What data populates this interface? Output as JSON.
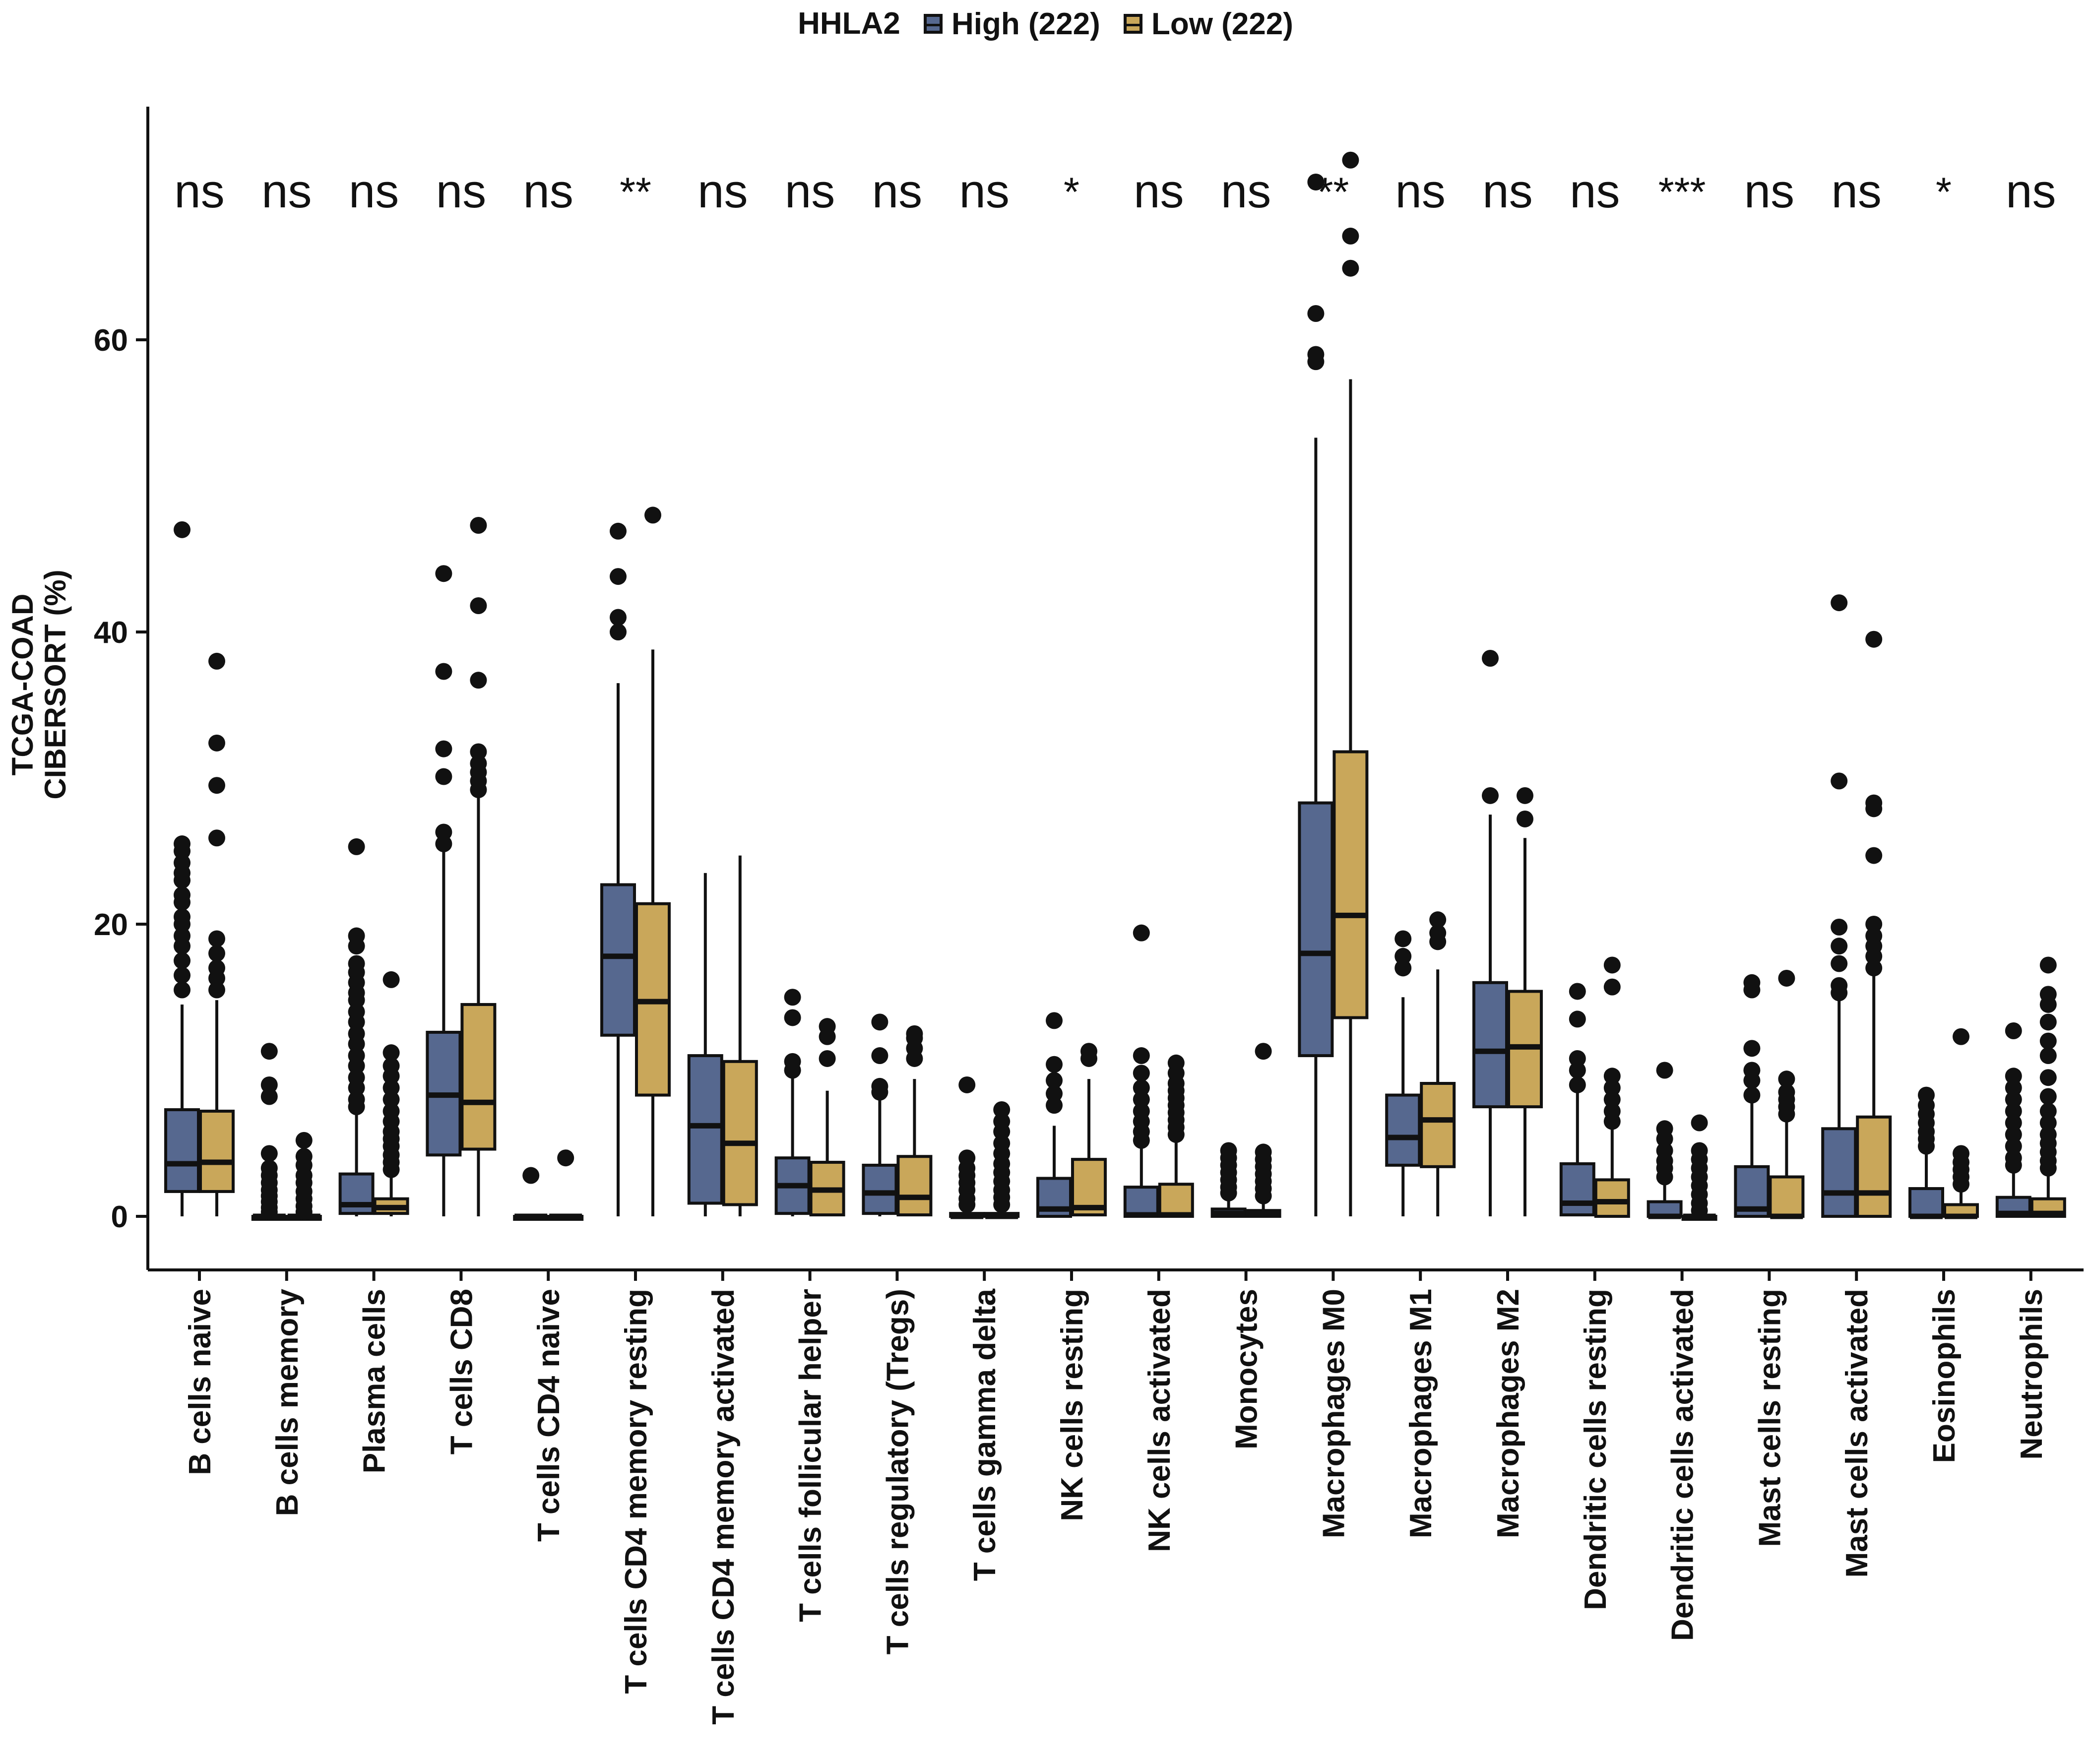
{
  "chart_data": {
    "type": "boxplot",
    "legend": {
      "title": "HHLA2",
      "entries": [
        {
          "label": "High (222)",
          "color": "#56688f"
        },
        {
          "label": "Low (222)",
          "color": "#c9a75a"
        }
      ]
    },
    "ylabel_lines": [
      "TCGA-COAD",
      "CIBERSORT (%)"
    ],
    "ylim": [
      -1,
      76
    ],
    "yticks": [
      0,
      20,
      40,
      60
    ],
    "categories": [
      "B cells naive",
      "B cells memory",
      "Plasma cells",
      "T cells CD8",
      "T cells CD4 naive",
      "T cells CD4 memory resting",
      "T cells CD4 memory activated",
      "T cells follicular helper",
      "T cells regulatory (Tregs)",
      "T cells gamma delta",
      "NK cells resting",
      "NK cells activated",
      "Monocytes",
      "Macrophages M0",
      "Macrophages M1",
      "Macrophages M2",
      "Dendritic cells resting",
      "Dendritic cells activated",
      "Mast cells resting",
      "Mast cells activated",
      "Eosinophils",
      "Neutrophils"
    ],
    "significance": [
      "ns",
      "ns",
      "ns",
      "ns",
      "ns",
      "**",
      "ns",
      "ns",
      "ns",
      "ns",
      "*",
      "ns",
      "ns",
      "**",
      "ns",
      "ns",
      "ns",
      "***",
      "ns",
      "ns",
      "*",
      "ns"
    ],
    "series": [
      {
        "name": "High (222)",
        "boxes": [
          {
            "q1": 1.7,
            "median": 3.6,
            "q3": 7.3,
            "lower": 0,
            "upper": 14.5,
            "outliers": [
              15.5,
              16.5,
              17.5,
              18.5,
              19.2,
              20,
              20.5,
              21.5,
              22,
              23,
              23.5,
              24.2,
              25,
              25.5,
              47
            ]
          },
          {
            "q1": 0,
            "median": 0,
            "q3": 0,
            "lower": 0,
            "upper": 0,
            "outliers": [
              0.3,
              0.6,
              1,
              1.4,
              1.8,
              2.3,
              2.8,
              3.3,
              4.3,
              8.2,
              9,
              11.3
            ]
          },
          {
            "q1": 0.2,
            "median": 0.8,
            "q3": 2.9,
            "lower": 0,
            "upper": 7,
            "outliers": [
              7.5,
              8,
              8.8,
              9.5,
              10.3,
              11,
              11.8,
              12.5,
              13.3,
              14,
              14.8,
              15.3,
              16,
              16.7,
              17.3,
              18.5,
              19.2,
              25.3
            ]
          },
          {
            "q1": 4.2,
            "median": 8.3,
            "q3": 12.6,
            "lower": 0,
            "upper": 25,
            "outliers": [
              25.5,
              26.3,
              30.1,
              32,
              37.3,
              44
            ]
          },
          {
            "q1": 0,
            "median": 0,
            "q3": 0,
            "lower": 0,
            "upper": 0,
            "outliers": [
              2.8
            ]
          },
          {
            "q1": 12.4,
            "median": 17.8,
            "q3": 22.7,
            "lower": 0,
            "upper": 36.5,
            "outliers": [
              40,
              41,
              43.8,
              46.9
            ]
          },
          {
            "q1": 0.9,
            "median": 6.2,
            "q3": 11,
            "lower": 0,
            "upper": 23.5,
            "outliers": []
          },
          {
            "q1": 0.2,
            "median": 2.1,
            "q3": 4,
            "lower": 0,
            "upper": 9.5,
            "outliers": [
              10,
              10.6,
              13.6,
              15
            ]
          },
          {
            "q1": 0.2,
            "median": 1.6,
            "q3": 3.5,
            "lower": 0,
            "upper": 8,
            "outliers": [
              8.5,
              8.9,
              11,
              13.3
            ]
          },
          {
            "q1": 0,
            "median": 0,
            "q3": 0.2,
            "lower": 0,
            "upper": 0.5,
            "outliers": [
              0.8,
              1.2,
              1.8,
              2.3,
              2.8,
              3.3,
              4,
              9
            ]
          },
          {
            "q1": 0,
            "median": 0.5,
            "q3": 2.6,
            "lower": 0,
            "upper": 6.2,
            "outliers": [
              7.6,
              8.4,
              9.3,
              10.4,
              13.4
            ]
          },
          {
            "q1": 0,
            "median": 0.1,
            "q3": 2,
            "lower": 0,
            "upper": 4.8,
            "outliers": [
              5.2,
              5.8,
              6.5,
              7.2,
              8,
              8.8,
              9.8,
              11,
              19.4
            ]
          },
          {
            "q1": 0,
            "median": 0.2,
            "q3": 0.5,
            "lower": 0,
            "upper": 1.2,
            "outliers": [
              1.6,
              2,
              2.5,
              3,
              3.5,
              4,
              4.5
            ]
          },
          {
            "q1": 11,
            "median": 18,
            "q3": 28.3,
            "lower": 0,
            "upper": 53.3,
            "outliers": [
              58.5,
              59,
              61.8,
              70.8
            ]
          },
          {
            "q1": 3.5,
            "median": 5.4,
            "q3": 8.3,
            "lower": 0,
            "upper": 15,
            "outliers": [
              17,
              17.8,
              19
            ]
          },
          {
            "q1": 7.5,
            "median": 11.3,
            "q3": 16,
            "lower": 0,
            "upper": 27.5,
            "outliers": [
              28.8,
              38.2
            ]
          },
          {
            "q1": 0.1,
            "median": 0.9,
            "q3": 3.6,
            "lower": 0,
            "upper": 8.5,
            "outliers": [
              9,
              10,
              10.8,
              13.5,
              15.4
            ]
          },
          {
            "q1": 0,
            "median": 0,
            "q3": 1,
            "lower": 0,
            "upper": 2.2,
            "outliers": [
              2.7,
              3.3,
              3.8,
              4.5,
              5.3,
              6,
              10
            ]
          },
          {
            "q1": 0,
            "median": 0.5,
            "q3": 3.4,
            "lower": 0,
            "upper": 7.8,
            "outliers": [
              8.3,
              9.3,
              10,
              11.5,
              15.5,
              16
            ]
          },
          {
            "q1": 0,
            "median": 1.6,
            "q3": 6,
            "lower": 0,
            "upper": 14.8,
            "outliers": [
              15.3,
              15.8,
              17.3,
              18.5,
              19.8,
              29.8,
              42
            ]
          },
          {
            "q1": 0,
            "median": 0,
            "q3": 1.9,
            "lower": 0,
            "upper": 4.4,
            "outliers": [
              4.8,
              5.3,
              5.8,
              6.4,
              7,
              7.6,
              8.3
            ]
          },
          {
            "q1": 0,
            "median": 0.2,
            "q3": 1.3,
            "lower": 0,
            "upper": 3,
            "outliers": [
              3.5,
              4,
              4.8,
              5.6,
              6.4,
              7.2,
              8,
              8.8,
              9.6,
              12.7
            ]
          }
        ]
      },
      {
        "name": "Low (222)",
        "boxes": [
          {
            "q1": 1.7,
            "median": 3.7,
            "q3": 7.2,
            "lower": 0,
            "upper": 14.8,
            "outliers": [
              15.5,
              16.3,
              17,
              18,
              19,
              25.9,
              29.5,
              32.4,
              38
            ]
          },
          {
            "q1": 0,
            "median": 0,
            "q3": 0,
            "lower": 0,
            "upper": 0,
            "outliers": [
              0.3,
              0.7,
              1.2,
              1.7,
              2.3,
              2.8,
              3.5,
              4.1,
              5.2
            ]
          },
          {
            "q1": 0.2,
            "median": 0.6,
            "q3": 1.2,
            "lower": 0,
            "upper": 2.8,
            "outliers": [
              3.2,
              3.7,
              4.2,
              4.8,
              5.3,
              5.8,
              6.5,
              7.2,
              8,
              8.8,
              9.6,
              10.3,
              11.2,
              16.2
            ]
          },
          {
            "q1": 4.6,
            "median": 7.8,
            "q3": 14.5,
            "lower": 0,
            "upper": 28.8,
            "outliers": [
              29.2,
              29.8,
              30.4,
              31,
              31.8,
              36.7,
              41.8,
              47.3
            ]
          },
          {
            "q1": 0,
            "median": 0,
            "q3": 0,
            "lower": 0,
            "upper": 0,
            "outliers": [
              4
            ]
          },
          {
            "q1": 8.3,
            "median": 14.7,
            "q3": 21.4,
            "lower": 0,
            "upper": 38.8,
            "outliers": [
              48
            ]
          },
          {
            "q1": 0.8,
            "median": 5,
            "q3": 10.6,
            "lower": 0,
            "upper": 24.7,
            "outliers": []
          },
          {
            "q1": 0.1,
            "median": 1.8,
            "q3": 3.7,
            "lower": 0,
            "upper": 8.6,
            "outliers": [
              10.8,
              12.3,
              13
            ]
          },
          {
            "q1": 0.1,
            "median": 1.3,
            "q3": 4.1,
            "lower": 0,
            "upper": 9.4,
            "outliers": [
              10.8,
              11.5,
              12.2,
              12.5
            ]
          },
          {
            "q1": 0,
            "median": 0,
            "q3": 0.2,
            "lower": 0,
            "upper": 0.5,
            "outliers": [
              0.8,
              1.3,
              1.8,
              2.4,
              3,
              3.6,
              4.3,
              5,
              5.8,
              6.5,
              7.3
            ]
          },
          {
            "q1": 0.1,
            "median": 0.6,
            "q3": 3.9,
            "lower": 0,
            "upper": 9.4,
            "outliers": [
              10.8,
              11.3
            ]
          },
          {
            "q1": 0,
            "median": 0.1,
            "q3": 2.2,
            "lower": 0,
            "upper": 5.2,
            "outliers": [
              5.6,
              6.1,
              6.6,
              7.1,
              7.6,
              8.1,
              8.6,
              9.1,
              9.8,
              10.5
            ]
          },
          {
            "q1": 0,
            "median": 0.2,
            "q3": 0.4,
            "lower": 0,
            "upper": 1,
            "outliers": [
              1.4,
              1.9,
              2.4,
              2.9,
              3.4,
              3.9,
              4.4,
              11.3
            ]
          },
          {
            "q1": 13.6,
            "median": 20.6,
            "q3": 31.8,
            "lower": 0,
            "upper": 57.3,
            "outliers": [
              64.9,
              67.1,
              72.3
            ]
          },
          {
            "q1": 3.4,
            "median": 6.6,
            "q3": 9.1,
            "lower": 0,
            "upper": 16.9,
            "outliers": [
              18.8,
              19.4,
              20.3
            ]
          },
          {
            "q1": 7.5,
            "median": 11.6,
            "q3": 15.4,
            "lower": 0,
            "upper": 25.9,
            "outliers": [
              27.2,
              28.8
            ]
          },
          {
            "q1": 0,
            "median": 1,
            "q3": 2.5,
            "lower": 0,
            "upper": 6,
            "outliers": [
              6.5,
              7.2,
              8,
              8.8,
              9.6,
              15.7,
              17.2
            ]
          },
          {
            "q1": 0,
            "median": 0,
            "q3": 0,
            "lower": 0,
            "upper": 0,
            "outliers": [
              0.4,
              0.9,
              1.5,
              2.1,
              2.7,
              3.3,
              3.9,
              4.5,
              6.4
            ]
          },
          {
            "q1": 0,
            "median": 0,
            "q3": 2.7,
            "lower": 0,
            "upper": 6.5,
            "outliers": [
              7,
              7.5,
              8,
              8.5,
              9.4,
              16.3
            ]
          },
          {
            "q1": 0,
            "median": 1.6,
            "q3": 6.8,
            "lower": 0,
            "upper": 16.5,
            "outliers": [
              17,
              17.8,
              18.5,
              19.2,
              20,
              24.7,
              27.9,
              28.3,
              39.5
            ]
          },
          {
            "q1": 0,
            "median": 0,
            "q3": 0.8,
            "lower": 0,
            "upper": 1.8,
            "outliers": [
              2.2,
              2.7,
              3.2,
              3.7,
              4.3,
              12.3
            ]
          },
          {
            "q1": 0,
            "median": 0.2,
            "q3": 1.2,
            "lower": 0,
            "upper": 2.8,
            "outliers": [
              3.3,
              3.8,
              4.4,
              5,
              5.6,
              6.4,
              7.2,
              8.2,
              9.5,
              11,
              12,
              13.3,
              14.5,
              15.2,
              17.2
            ]
          }
        ]
      }
    ]
  }
}
